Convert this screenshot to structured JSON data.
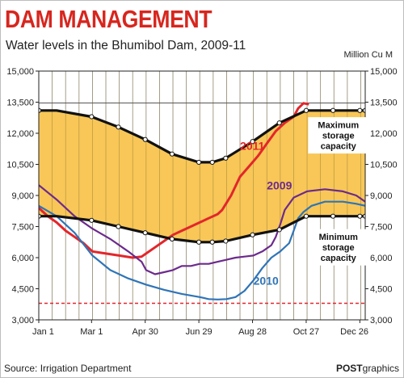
{
  "header": {
    "headline": "DAM MANAGEMENT",
    "subtitle": "Water levels in the Bhumibol Dam, 2009-11",
    "unit": "Million Cu M"
  },
  "footer": {
    "source": "Source: Irrigation Department",
    "credit_bold": "POST",
    "credit_rest": "graphics"
  },
  "colors": {
    "band_fill": "#f7bd3a",
    "series_2011": "#e3262b",
    "series_2009": "#6c2a8c",
    "series_2010": "#2f74b7",
    "capacity_line": "#111111",
    "dead_storage_line": "#e3262b",
    "plot_background": "#ffffff"
  },
  "chart_data": {
    "type": "line",
    "xlabels": [
      "Jan 1",
      "Mar 1",
      "Apr 30",
      "Jun 29",
      "Aug 28",
      "Oct 27",
      "Dec 26"
    ],
    "xlabel_days": [
      0,
      59,
      119,
      179,
      239,
      299,
      359
    ],
    "x_range": [
      0,
      365
    ],
    "yticks": [
      3000,
      4500,
      6000,
      7500,
      9000,
      10500,
      12000,
      13500,
      15000
    ],
    "ytick_labels": [
      "3,000",
      "4,500",
      "6,000",
      "7,500",
      "9,000",
      "10,500",
      "12,000",
      "13,500",
      "15,000"
    ],
    "ylim": [
      3000,
      15000
    ],
    "grid": "vertical",
    "dead_storage_level": 3800,
    "max_capacity_ceiling": 13462,
    "series": [
      {
        "name": "2011",
        "key": "s2011",
        "x": [
          0,
          10,
          20,
          30,
          40,
          50,
          60,
          75,
          90,
          105,
          115,
          120,
          130,
          140,
          150,
          160,
          170,
          180,
          190,
          200,
          205,
          215,
          225,
          235,
          245,
          255,
          265,
          275,
          285,
          290,
          296,
          302
        ],
        "y": [
          8400,
          8000,
          7700,
          7300,
          7000,
          6700,
          6300,
          6200,
          6100,
          6000,
          6050,
          6200,
          6500,
          6800,
          7100,
          7300,
          7500,
          7700,
          7900,
          8100,
          8300,
          9000,
          9900,
          10400,
          10900,
          11500,
          12100,
          12500,
          12800,
          13200,
          13450,
          13400
        ]
      },
      {
        "name": "2009",
        "key": "s2009",
        "x": [
          0,
          20,
          40,
          60,
          80,
          100,
          115,
          120,
          130,
          140,
          150,
          160,
          170,
          180,
          190,
          200,
          210,
          220,
          230,
          240,
          250,
          260,
          265,
          270,
          275,
          285,
          300,
          320,
          340,
          355,
          365
        ],
        "y": [
          9500,
          8800,
          8000,
          7400,
          6900,
          6300,
          5800,
          5400,
          5200,
          5300,
          5400,
          5600,
          5600,
          5700,
          5700,
          5800,
          5900,
          6000,
          6050,
          6100,
          6300,
          6600,
          7000,
          7600,
          8300,
          8900,
          9200,
          9300,
          9200,
          9000,
          8700
        ]
      },
      {
        "name": "2010",
        "key": "s2010",
        "x": [
          0,
          20,
          40,
          60,
          80,
          100,
          120,
          140,
          160,
          180,
          190,
          200,
          210,
          220,
          230,
          240,
          250,
          260,
          270,
          280,
          285,
          290,
          296,
          305,
          320,
          340,
          355,
          365
        ],
        "y": [
          8500,
          8000,
          7200,
          6100,
          5400,
          5000,
          4700,
          4450,
          4250,
          4100,
          4000,
          3980,
          4000,
          4100,
          4400,
          4900,
          5500,
          6000,
          6300,
          6700,
          7300,
          7900,
          8200,
          8500,
          8700,
          8700,
          8600,
          8500
        ]
      }
    ],
    "capacity_lines": [
      {
        "name": "Maximum storage capacity",
        "key": "max",
        "x": [
          0,
          20,
          59,
          89,
          119,
          149,
          179,
          194,
          209,
          239,
          269,
          299,
          329,
          359,
          365
        ],
        "y": [
          13100,
          13100,
          12800,
          12300,
          11700,
          11000,
          10600,
          10600,
          10800,
          11600,
          12500,
          13100,
          13100,
          13100,
          13100
        ]
      },
      {
        "name": "Minimum storage capacity",
        "key": "min",
        "x": [
          0,
          20,
          59,
          89,
          119,
          149,
          179,
          194,
          209,
          239,
          269,
          299,
          329,
          359,
          365
        ],
        "y": [
          8000,
          8000,
          7800,
          7500,
          7200,
          6900,
          6750,
          6750,
          6800,
          7100,
          7350,
          8000,
          8000,
          8000,
          8000
        ]
      }
    ],
    "annotations": {
      "max_label": [
        "Maximum",
        "storage",
        "capacity"
      ],
      "min_label": [
        "Minimum",
        "storage",
        "capacity"
      ]
    }
  }
}
